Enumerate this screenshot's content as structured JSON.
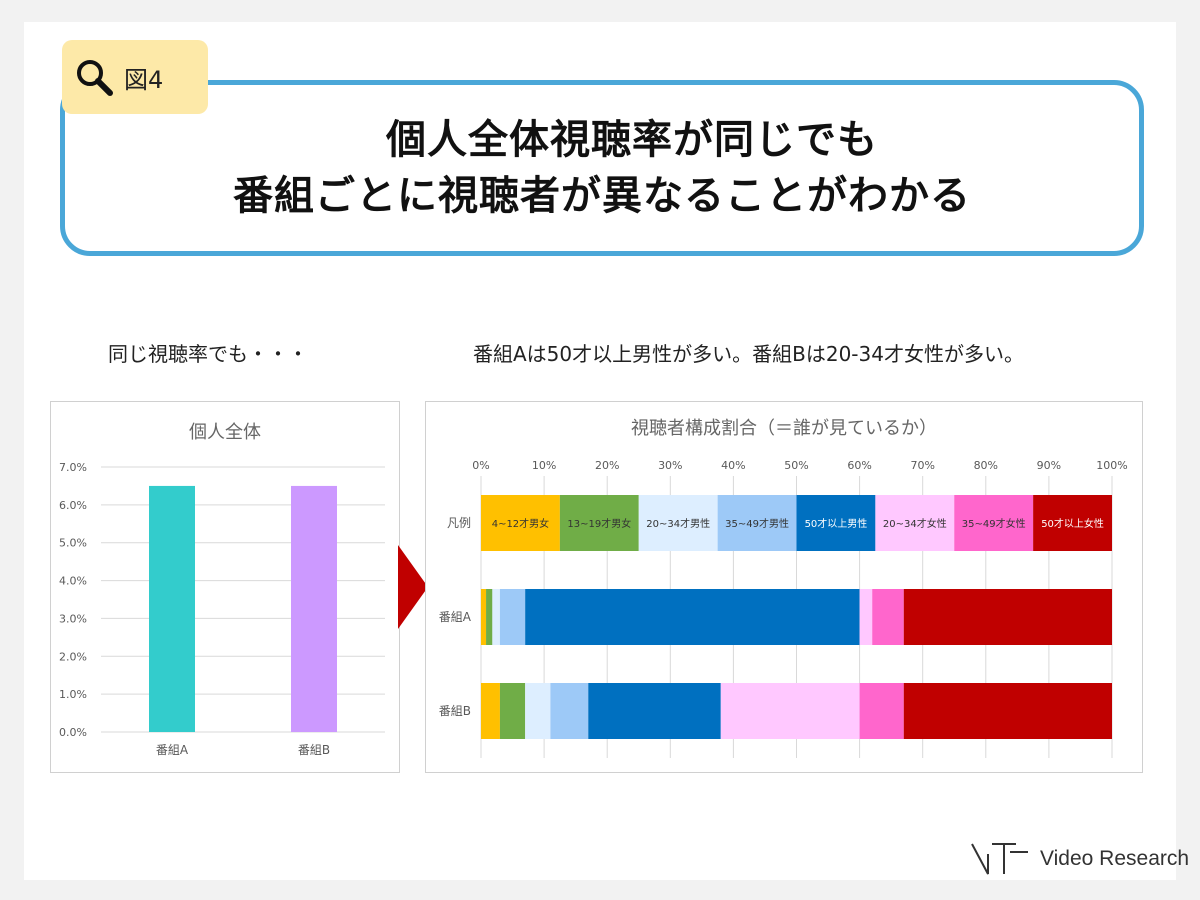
{
  "figure_tag": {
    "label": "図4",
    "icon": "magnifier-icon"
  },
  "title": {
    "line1": "個人全体視聴率が同じでも",
    "line2": "番組ごとに視聴者が異なることがわかる"
  },
  "captions": {
    "left": "同じ視聴率でも・・・",
    "right": "番組Aは50才以上男性が多い。番組Bは20-34才女性が多い。"
  },
  "brand": {
    "name": "Video Research"
  },
  "chart_data": [
    {
      "type": "bar",
      "title": "個人全体",
      "categories": [
        "番組A",
        "番組B"
      ],
      "values": [
        6.5,
        6.5
      ],
      "colors": [
        "#33cccc",
        "#cc99ff"
      ],
      "ylim": [
        0,
        7
      ],
      "yticks": [
        "7.0%",
        "6.0%",
        "5.0%",
        "4.0%",
        "3.0%",
        "2.0%",
        "1.0%",
        "0.0%"
      ],
      "grid": true
    },
    {
      "type": "bar",
      "orientation": "horizontal-stacked-100",
      "title": "視聴者構成割合（＝誰が見ているか）",
      "xticks": [
        "0%",
        "10%",
        "20%",
        "30%",
        "40%",
        "50%",
        "60%",
        "70%",
        "80%",
        "90%",
        "100%"
      ],
      "categories": [
        "凡例",
        "番組A",
        "番組B"
      ],
      "series": [
        {
          "name": "4~12才男女",
          "color": "#ffc000",
          "values": [
            12.5,
            0.8,
            3.0
          ]
        },
        {
          "name": "13~19才男女",
          "color": "#70ad47",
          "values": [
            12.5,
            1.0,
            4.0
          ]
        },
        {
          "name": "20~34才男性",
          "color": "#ddeeff",
          "values": [
            12.5,
            1.2,
            4.0
          ]
        },
        {
          "name": "35~49才男性",
          "color": "#9dc9f7",
          "values": [
            12.5,
            4.0,
            6.0
          ]
        },
        {
          "name": "50才以上男性",
          "color": "#0070c0",
          "values": [
            12.5,
            53.0,
            21.0
          ]
        },
        {
          "name": "20~34才女性",
          "color": "#ffc8ff",
          "values": [
            12.5,
            2.0,
            22.0
          ]
        },
        {
          "name": "35~49才女性",
          "color": "#ff66cc",
          "values": [
            12.5,
            5.0,
            7.0
          ]
        },
        {
          "name": "50才以上女性",
          "color": "#c00000",
          "values": [
            12.5,
            33.0,
            33.0
          ]
        }
      ],
      "legend_label_colors": [
        "#333333",
        "#333333",
        "#333333",
        "#333333",
        "#ffffff",
        "#333333",
        "#333333",
        "#ffffff"
      ],
      "grid": true
    }
  ]
}
